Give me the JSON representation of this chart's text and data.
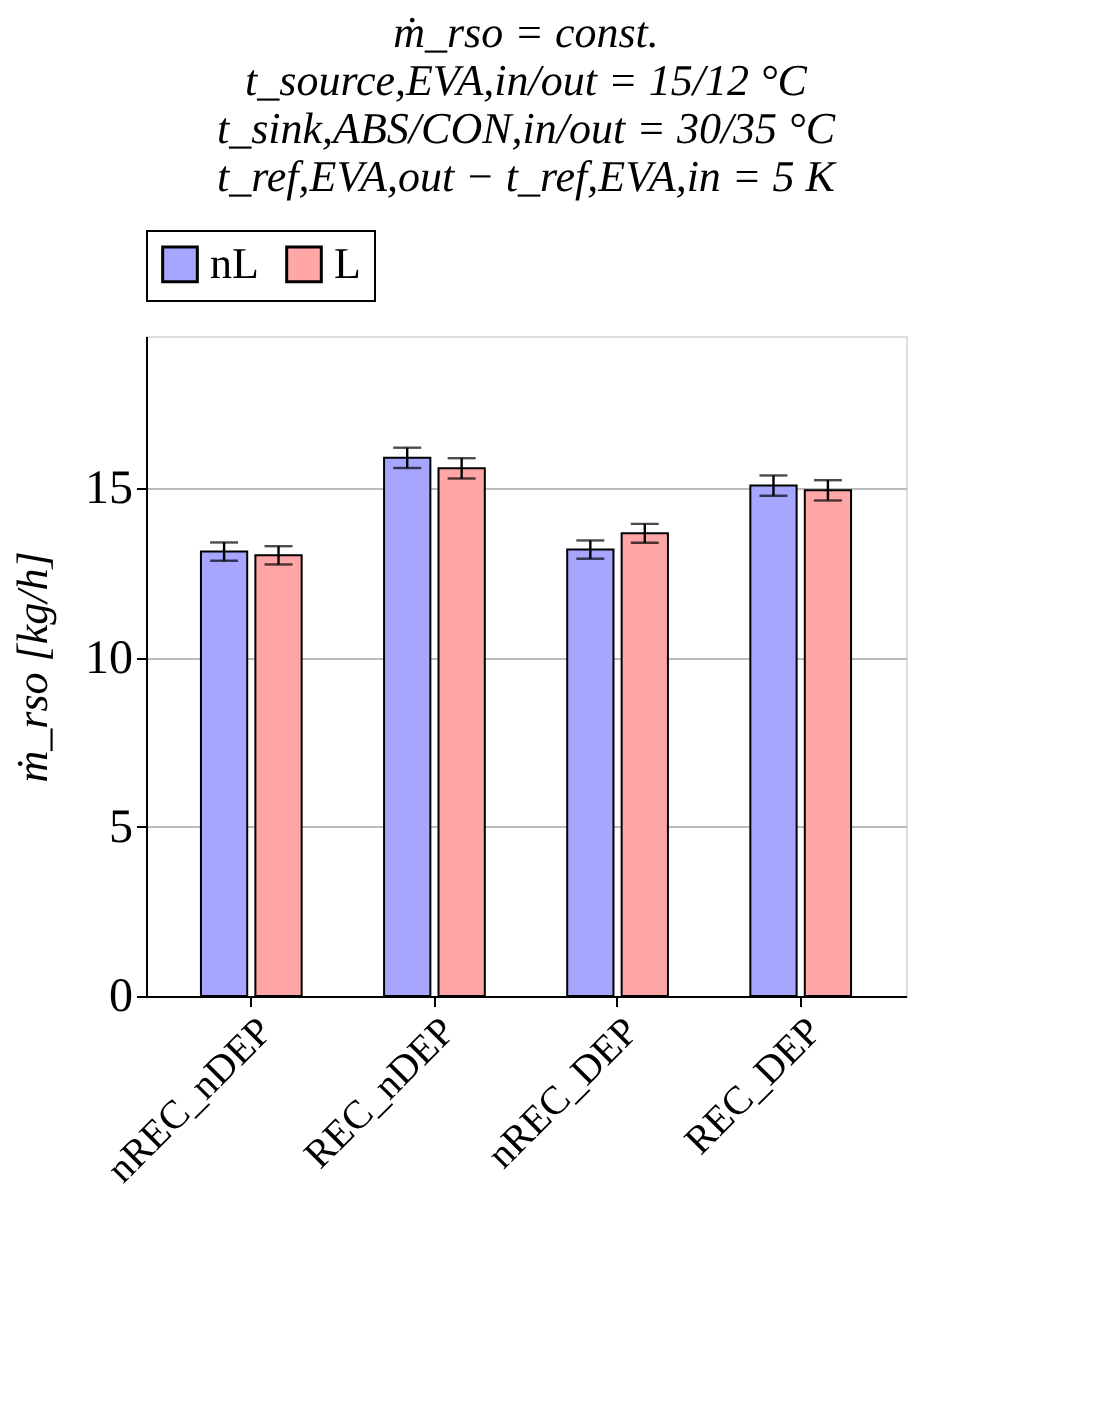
{
  "chart_data": {
    "type": "bar",
    "title": [
      "ṁ_rso = const.",
      "t_source,EVA,in/out = 15/12 °C",
      "t_sink,ABS/CON,in/out = 30/35 °C",
      "t_ref,EVA,out − t_ref,EVA,in = 5 K"
    ],
    "ylabel": "ṁ_rso [kg/h]",
    "categories": [
      "nREC_nDEP",
      "REC_nDEP",
      "nREC_DEP",
      "REC_DEP"
    ],
    "series": [
      {
        "name": "nL",
        "color": "#a6a6ff",
        "values": [
          13.13,
          15.9,
          13.19,
          15.08
        ],
        "errors": [
          0.27,
          0.3,
          0.27,
          0.3
        ]
      },
      {
        "name": "L",
        "color": "#ffa6a6",
        "values": [
          13.02,
          15.59,
          13.67,
          14.94
        ],
        "errors": [
          0.27,
          0.3,
          0.28,
          0.3
        ]
      }
    ],
    "ylim": [
      0,
      19.5
    ],
    "yticks": [
      0,
      5,
      10,
      15
    ],
    "grid": "y",
    "legend": "top"
  }
}
